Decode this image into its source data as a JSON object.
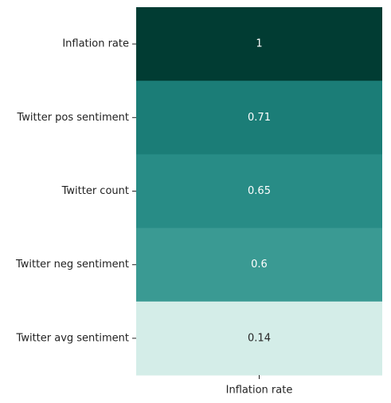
{
  "chart_data": {
    "type": "heatmap",
    "title": "",
    "xlabel": "",
    "ylabel": "",
    "columns": [
      "Inflation rate"
    ],
    "rows": [
      "Inflation rate",
      "Twitter pos sentiment",
      "Twitter count",
      "Twitter neg sentiment",
      "Twitter avg sentiment"
    ],
    "values": [
      1,
      0.71,
      0.65,
      0.6,
      0.14
    ],
    "value_labels": [
      "1",
      "0.71",
      "0.65",
      "0.6",
      "0.14"
    ],
    "cell_colors": [
      "#013c33",
      "#1b7d77",
      "#288c86",
      "#3a9a93",
      "#d4ede8"
    ],
    "cell_text_colors": [
      "#ffffff",
      "#ffffff",
      "#ffffff",
      "#ffffff",
      "#262626"
    ],
    "colorbar": false,
    "grid": false
  }
}
